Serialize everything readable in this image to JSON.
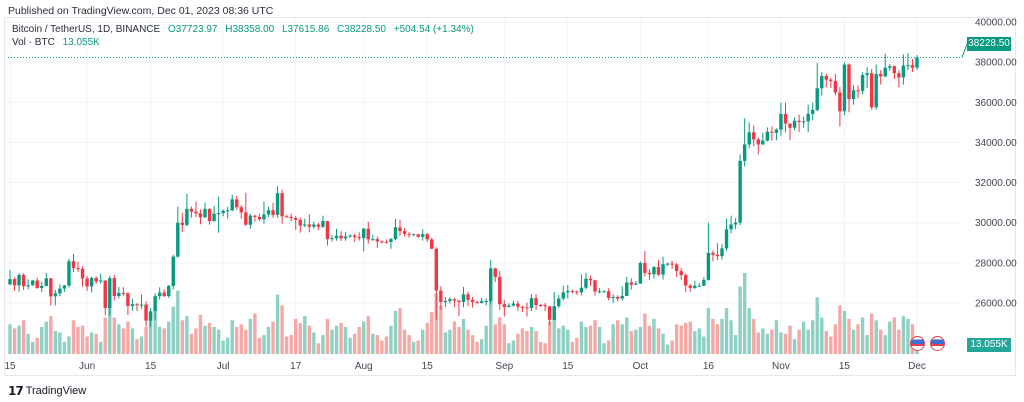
{
  "published": "Published on TradingView.com, Dec 01, 2023 08:36 UTC",
  "legend": {
    "symbol": "Bitcoin / TetherUS, 1D, BINANCE",
    "open": "O37723.97",
    "high": "H38358.00",
    "low": "L37615.86",
    "close": "C38228.50",
    "change": "+504.54 (+1.34%)",
    "vol_label": "Vol · BTC",
    "vol_value": "13.055K"
  },
  "last_price_tag": "38228.50",
  "last_volume_tag": "13.055K",
  "footer": {
    "brand": "TradingView",
    "logo_text": "TV"
  },
  "colors": {
    "up": "#089981",
    "down": "#f23645",
    "vol_up": "#8fd0c4",
    "vol_down": "#f5a9a6",
    "grid": "#f0f3fa"
  },
  "events": [
    "us-flag-event",
    "us-flag-event"
  ],
  "chart_data": {
    "type": "candlestick",
    "title": "Bitcoin / TetherUS, 1D, BINANCE",
    "start_date": "2023-05-15",
    "end_date": "2023-12-01",
    "ylim": [
      25000,
      40000
    ],
    "y_ticks": [
      "40000.00",
      "38000.00",
      "36000.00",
      "34000.00",
      "32000.00",
      "30000.00",
      "28000.00",
      "26000.00"
    ],
    "y_tick_values": [
      40000,
      38000,
      36000,
      34000,
      32000,
      30000,
      28000,
      26000
    ],
    "x_ticks": [
      {
        "label": "15",
        "day": 0
      },
      {
        "label": "Jun",
        "day": 17
      },
      {
        "label": "15",
        "day": 31
      },
      {
        "label": "Jul",
        "day": 47
      },
      {
        "label": "17",
        "day": 63
      },
      {
        "label": "Aug",
        "day": 78
      },
      {
        "label": "15",
        "day": 92
      },
      {
        "label": "Sep",
        "day": 109
      },
      {
        "label": "15",
        "day": 123
      },
      {
        "label": "Oct",
        "day": 139
      },
      {
        "label": "16",
        "day": 154
      },
      {
        "label": "Nov",
        "day": 170
      },
      {
        "label": "15",
        "day": 184
      },
      {
        "label": "Dec",
        "day": 200
      }
    ],
    "first_open": 26930,
    "last_open": 37723.97,
    "close": [
      27190,
      26880,
      27400,
      26830,
      26890,
      27120,
      26750,
      26850,
      27230,
      26330,
      26480,
      26720,
      26870,
      28080,
      27740,
      27700,
      27220,
      26820,
      27250,
      27070,
      27120,
      25750,
      27240,
      26350,
      26500,
      26480,
      25850,
      25940,
      25900,
      25920,
      25120,
      25580,
      26340,
      26520,
      26340,
      26850,
      28310,
      30000,
      29890,
      30690,
      30550,
      30470,
      30270,
      30690,
      30080,
      30450,
      30480,
      30590,
      30620,
      31160,
      30770,
      30510,
      29900,
      30350,
      30290,
      30170,
      30410,
      30620,
      30390,
      31470,
      30320,
      30290,
      30230,
      30140,
      29860,
      29910,
      29800,
      29910,
      29800,
      30080,
      29180,
      29230,
      29350,
      29220,
      29310,
      29360,
      29280,
      29230,
      29700,
      29170,
      29180,
      29070,
      29050,
      29040,
      29180,
      29770,
      29580,
      29440,
      29400,
      29420,
      29300,
      29430,
      29170,
      28700,
      26620,
      26050,
      26100,
      26190,
      26120,
      26050,
      26430,
      26160,
      26050,
      26000,
      26090,
      26100,
      27720,
      27300,
      25940,
      25800,
      25870,
      25970,
      25810,
      25780,
      25750,
      26240,
      25900,
      25890,
      25830,
      25160,
      25840,
      26220,
      26530,
      26600,
      26570,
      26530,
      26760,
      27210,
      27130,
      26570,
      26580,
      26580,
      26250,
      26300,
      26220,
      26350,
      27020,
      26910,
      26970,
      27990,
      27500,
      27430,
      27790,
      27410,
      27930,
      27960,
      27920,
      27590,
      27390,
      26870,
      26750,
      26860,
      26860,
      27150,
      28500,
      28400,
      28330,
      28720,
      29670,
      29910,
      30000,
      33080,
      33900,
      34500,
      34150,
      33900,
      34090,
      34530,
      34480,
      34640,
      35420,
      34940,
      34730,
      35080,
      35020,
      35050,
      35420,
      35620,
      36700,
      37310,
      37130,
      37060,
      36490,
      35550,
      37880,
      36160,
      36600,
      36570,
      37360,
      37450,
      35750,
      37410,
      37290,
      37720,
      37800,
      37450,
      37240,
      37830,
      37850,
      37720,
      38228.5
    ],
    "high": [
      27650,
      27280,
      27480,
      27480,
      27180,
      27150,
      27260,
      27050,
      27500,
      27240,
      26650,
      26930,
      26900,
      28200,
      28450,
      28050,
      27830,
      27350,
      27300,
      27330,
      27460,
      27130,
      27360,
      27400,
      26800,
      26790,
      26530,
      26210,
      26000,
      26420,
      26080,
      25750,
      26480,
      26780,
      26680,
      26900,
      28400,
      30800,
      30500,
      31440,
      30800,
      31050,
      30660,
      31000,
      30710,
      30830,
      31290,
      30660,
      30790,
      31400,
      31330,
      30880,
      31500,
      30450,
      30390,
      30450,
      31050,
      30800,
      30990,
      31820,
      31650,
      30390,
      30450,
      30340,
      30250,
      30200,
      30420,
      30050,
      29990,
      30350,
      30100,
      29380,
      29690,
      29570,
      29530,
      29420,
      29450,
      29530,
      29740,
      30050,
      29400,
      29310,
      29110,
      29170,
      29250,
      30190,
      30140,
      29720,
      29530,
      29470,
      29450,
      29670,
      29490,
      29250,
      28780,
      26830,
      26300,
      26280,
      26250,
      26140,
      26800,
      26560,
      26300,
      26110,
      26250,
      26220,
      28140,
      27760,
      27580,
      26140,
      25980,
      26120,
      26100,
      25860,
      26020,
      26440,
      26440,
      25940,
      26000,
      25860,
      26550,
      26400,
      26860,
      26890,
      26660,
      26620,
      27430,
      27490,
      27370,
      27160,
      26730,
      26640,
      26730,
      26430,
      26390,
      26830,
      27300,
      27230,
      27090,
      28070,
      28590,
      27680,
      27840,
      28130,
      28300,
      28000,
      28110,
      27990,
      27740,
      27480,
      26950,
      27100,
      26980,
      27290,
      30000,
      28610,
      28980,
      28930,
      30200,
      30350,
      30230,
      33400,
      35200,
      35000,
      34840,
      34240,
      34480,
      34750,
      34800,
      34700,
      35980,
      35980,
      34940,
      35250,
      35380,
      35280,
      35880,
      35980,
      37970,
      37500,
      37410,
      37230,
      37420,
      36760,
      37980,
      37930,
      36850,
      36840,
      37500,
      37750,
      37650,
      37880,
      37600,
      38420,
      37900,
      37830,
      37580,
      38380,
      38450,
      38150,
      38358
    ],
    "low": [
      26890,
      26600,
      26560,
      26650,
      26680,
      26850,
      26700,
      26550,
      26820,
      25870,
      25880,
      26340,
      26550,
      26770,
      27550,
      27550,
      26820,
      26600,
      26510,
      26950,
      26970,
      25390,
      25360,
      26120,
      26230,
      26330,
      25400,
      25610,
      25600,
      25710,
      24820,
      24800,
      25170,
      26170,
      26300,
      26260,
      26680,
      28260,
      29530,
      29810,
      30250,
      30280,
      29920,
      30230,
      29900,
      30050,
      29500,
      30320,
      30200,
      30570,
      30640,
      30200,
      29850,
      29700,
      30050,
      30080,
      29950,
      30280,
      30250,
      30250,
      29950,
      30250,
      30070,
      29650,
      29500,
      29770,
      29520,
      29700,
      29620,
      29740,
      28860,
      29060,
      29100,
      29090,
      29100,
      29250,
      29030,
      29110,
      28580,
      28950,
      29100,
      28750,
      28960,
      28960,
      28700,
      29120,
      29350,
      29320,
      29250,
      29360,
      29250,
      29110,
      29060,
      28700,
      25170,
      25650,
      25800,
      25970,
      25800,
      25350,
      25790,
      25860,
      25770,
      25960,
      25970,
      25880,
      25920,
      27040,
      25660,
      25330,
      25780,
      25820,
      25600,
      25560,
      25330,
      25600,
      25650,
      25800,
      25600,
      24900,
      25130,
      25760,
      26130,
      26230,
      26470,
      26400,
      26380,
      26680,
      26840,
      26370,
      26480,
      26520,
      26140,
      25990,
      26080,
      26120,
      26340,
      26670,
      26900,
      26950,
      27320,
      27150,
      27220,
      27360,
      27170,
      27840,
      27700,
      27290,
      27160,
      26550,
      26560,
      26700,
      26820,
      26840,
      27110,
      28080,
      28130,
      28160,
      28600,
      29470,
      29680,
      29880,
      32800,
      33700,
      33800,
      33400,
      33880,
      34050,
      34080,
      34100,
      34330,
      34500,
      34110,
      34600,
      34520,
      34730,
      34510,
      35100,
      35550,
      36340,
      36750,
      36710,
      36340,
      34800,
      35360,
      35500,
      35880,
      36200,
      36400,
      36710,
      35630,
      35630,
      36880,
      37250,
      37560,
      37160,
      36750,
      36880,
      37600,
      37500,
      37615.86
    ],
    "volume_unit": "K BTC",
    "volume": [
      22,
      19,
      21,
      25,
      15,
      9,
      12,
      20,
      24,
      28,
      17,
      16,
      9,
      13,
      25,
      20,
      21,
      13,
      16,
      15,
      9,
      27,
      35,
      27,
      22,
      19,
      24,
      19,
      11,
      13,
      20,
      31,
      31,
      20,
      19,
      24,
      35,
      47,
      25,
      28,
      15,
      19,
      29,
      21,
      23,
      20,
      18,
      10,
      12,
      25,
      20,
      22,
      18,
      26,
      30,
      12,
      14,
      20,
      24,
      44,
      36,
      13,
      14,
      26,
      23,
      28,
      21,
      16,
      8,
      14,
      26,
      18,
      21,
      23,
      20,
      12,
      15,
      20,
      24,
      28,
      15,
      14,
      10,
      13,
      21,
      32,
      34,
      18,
      14,
      9,
      10,
      18,
      23,
      31,
      45,
      36,
      16,
      18,
      24,
      20,
      26,
      18,
      14,
      9,
      11,
      21,
      40,
      22,
      27,
      22,
      8,
      10,
      15,
      19,
      17,
      20,
      17,
      9,
      8,
      24,
      30,
      19,
      21,
      18,
      9,
      12,
      24,
      20,
      21,
      25,
      20,
      8,
      10,
      22,
      25,
      22,
      27,
      17,
      18,
      20,
      30,
      21,
      26,
      19,
      15,
      7,
      10,
      22,
      21,
      23,
      24,
      17,
      19,
      13,
      34,
      26,
      22,
      26,
      34,
      25,
      14,
      50,
      60,
      34,
      26,
      16,
      19,
      15,
      18,
      25,
      16,
      15,
      21,
      11,
      18,
      24,
      18,
      25,
      42,
      27,
      17,
      13,
      22,
      36,
      32,
      26,
      18,
      22,
      27,
      14,
      30,
      25,
      18,
      14,
      24,
      27,
      18,
      28,
      26,
      22,
      13.055
    ]
  }
}
